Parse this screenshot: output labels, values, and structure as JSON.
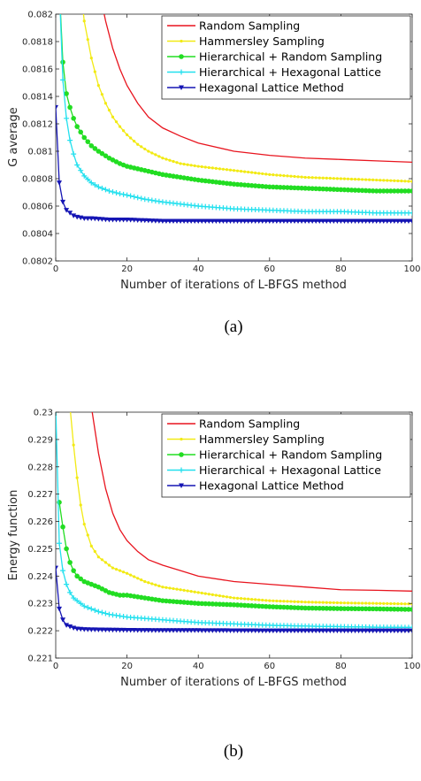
{
  "chart_data": [
    {
      "type": "line",
      "caption": "(a)",
      "xlabel": "Number of iterations of L-BFGS method",
      "ylabel": "G average",
      "xlim": [
        0,
        100
      ],
      "ylim": [
        0.0802,
        0.082
      ],
      "xticks": [
        "0",
        "20",
        "40",
        "60",
        "80",
        "100"
      ],
      "yticks": [
        "0.0802",
        "0.0804",
        "0.0806",
        "0.0808",
        "0.081",
        "0.0812",
        "0.0814",
        "0.0816",
        "0.0818",
        "0.082"
      ],
      "grid": false,
      "legend_position": "top-right",
      "series": [
        {
          "name": "Random Sampling",
          "color": "#e8141e",
          "marker": "none",
          "x": [
            12,
            14,
            16,
            18,
            20,
            23,
            26,
            30,
            35,
            40,
            50,
            60,
            70,
            80,
            90,
            100
          ],
          "y": [
            0.0822,
            0.08195,
            0.08175,
            0.0816,
            0.08148,
            0.08135,
            0.08125,
            0.08117,
            0.08111,
            0.08106,
            0.081,
            0.08097,
            0.08095,
            0.08094,
            0.08093,
            0.08092
          ]
        },
        {
          "name": "Hammersley Sampling",
          "color": "#f2ea14",
          "marker": "dot",
          "x": [
            7,
            8,
            10,
            12,
            14,
            16,
            18,
            20,
            23,
            26,
            30,
            35,
            40,
            50,
            60,
            70,
            80,
            90,
            100
          ],
          "y": [
            0.0822,
            0.08195,
            0.08168,
            0.08148,
            0.08135,
            0.08125,
            0.08118,
            0.08112,
            0.08105,
            0.081,
            0.08095,
            0.08091,
            0.08089,
            0.08086,
            0.08083,
            0.08081,
            0.0808,
            0.08079,
            0.08078
          ]
        },
        {
          "name": "Hierarchical + Random Sampling",
          "color": "#22dd22",
          "marker": "circle",
          "x": [
            1,
            2,
            3,
            4,
            5,
            6,
            8,
            10,
            12,
            15,
            18,
            20,
            25,
            30,
            40,
            50,
            60,
            70,
            80,
            90,
            100
          ],
          "y": [
            0.0822,
            0.08165,
            0.08142,
            0.08132,
            0.08124,
            0.08118,
            0.0811,
            0.08104,
            0.081,
            0.08095,
            0.08091,
            0.08089,
            0.08086,
            0.08083,
            0.08079,
            0.08076,
            0.08074,
            0.08073,
            0.08072,
            0.08071,
            0.08071
          ]
        },
        {
          "name": "Hierarchical + Hexagonal Lattice",
          "color": "#22e0ee",
          "marker": "plus",
          "x": [
            1,
            2,
            3,
            4,
            5,
            6,
            8,
            10,
            12,
            15,
            18,
            20,
            25,
            30,
            40,
            50,
            60,
            70,
            80,
            90,
            100
          ],
          "y": [
            0.0822,
            0.08152,
            0.08124,
            0.08108,
            0.08098,
            0.0809,
            0.08082,
            0.08077,
            0.08074,
            0.08071,
            0.08069,
            0.08068,
            0.08065,
            0.08063,
            0.0806,
            0.08058,
            0.08057,
            0.08056,
            0.08056,
            0.08055,
            0.08055
          ]
        },
        {
          "name": "Hexagonal Lattice Method",
          "color": "#1515b4",
          "marker": "triangle",
          "x": [
            0,
            1,
            2,
            3,
            4,
            5,
            6,
            8,
            10,
            15,
            20,
            30,
            40,
            60,
            80,
            100
          ],
          "y": [
            0.08132,
            0.08077,
            0.08063,
            0.08057,
            0.08055,
            0.08053,
            0.08052,
            0.08051,
            0.08051,
            0.0805,
            0.0805,
            0.08049,
            0.08049,
            0.08049,
            0.08049,
            0.08049
          ]
        }
      ]
    },
    {
      "type": "line",
      "caption": "(b)",
      "xlabel": "Number of iterations of L-BFGS method",
      "ylabel": "Energy function",
      "xlim": [
        0,
        100
      ],
      "ylim": [
        0.221,
        0.23
      ],
      "xticks": [
        "0",
        "20",
        "40",
        "60",
        "80",
        "100"
      ],
      "yticks": [
        "0.221",
        "0.222",
        "0.223",
        "0.224",
        "0.225",
        "0.226",
        "0.227",
        "0.228",
        "0.229",
        "0.23"
      ],
      "grid": false,
      "legend_position": "top-right",
      "series": [
        {
          "name": "Random Sampling",
          "color": "#e8141e",
          "marker": "none",
          "x": [
            10,
            12,
            14,
            16,
            18,
            20,
            23,
            26,
            30,
            35,
            40,
            50,
            60,
            70,
            80,
            90,
            100
          ],
          "y": [
            0.2302,
            0.2285,
            0.2272,
            0.2263,
            0.2257,
            0.2253,
            0.2249,
            0.2246,
            0.2244,
            0.2242,
            0.224,
            0.2238,
            0.2237,
            0.2236,
            0.2235,
            0.22348,
            0.22345
          ]
        },
        {
          "name": "Hammersley Sampling",
          "color": "#f2ea14",
          "marker": "dot",
          "x": [
            4,
            5,
            6,
            7,
            8,
            10,
            12,
            14,
            16,
            18,
            20,
            25,
            30,
            40,
            50,
            60,
            70,
            80,
            90,
            100
          ],
          "y": [
            0.2302,
            0.2288,
            0.2276,
            0.2266,
            0.2259,
            0.2251,
            0.2247,
            0.2245,
            0.2243,
            0.2242,
            0.2241,
            0.2238,
            0.2236,
            0.2234,
            0.2232,
            0.2231,
            0.22305,
            0.22302,
            0.223,
            0.22298
          ]
        },
        {
          "name": "Hierarchical + Random Sampling",
          "color": "#22dd22",
          "marker": "circle",
          "x": [
            1,
            2,
            3,
            4,
            5,
            6,
            8,
            10,
            12,
            15,
            18,
            20,
            25,
            30,
            40,
            50,
            60,
            70,
            80,
            90,
            100
          ],
          "y": [
            0.2267,
            0.2258,
            0.225,
            0.2245,
            0.2242,
            0.224,
            0.2238,
            0.2237,
            0.2236,
            0.2234,
            0.2233,
            0.2233,
            0.2232,
            0.2231,
            0.223,
            0.22295,
            0.22288,
            0.22283,
            0.22281,
            0.2228,
            0.22278
          ]
        },
        {
          "name": "Hierarchical + Hexagonal Lattice",
          "color": "#22e0ee",
          "marker": "plus",
          "x": [
            0,
            1,
            2,
            3,
            4,
            5,
            6,
            8,
            10,
            12,
            15,
            20,
            25,
            30,
            40,
            50,
            60,
            70,
            80,
            90,
            100
          ],
          "y": [
            0.2302,
            0.2252,
            0.2242,
            0.2237,
            0.2234,
            0.2232,
            0.2231,
            0.2229,
            0.2228,
            0.2227,
            0.2226,
            0.2225,
            0.22245,
            0.2224,
            0.2223,
            0.22225,
            0.2222,
            0.22217,
            0.22215,
            0.22213,
            0.22212
          ]
        },
        {
          "name": "Hexagonal Lattice Method",
          "color": "#1515b4",
          "marker": "triangle",
          "x": [
            0,
            1,
            2,
            3,
            4,
            5,
            6,
            8,
            10,
            15,
            20,
            30,
            40,
            60,
            80,
            100
          ],
          "y": [
            0.2243,
            0.2228,
            0.2224,
            0.2222,
            0.22215,
            0.2221,
            0.22207,
            0.22205,
            0.22204,
            0.22203,
            0.22202,
            0.22201,
            0.22201,
            0.222,
            0.222,
            0.222
          ]
        }
      ]
    }
  ]
}
